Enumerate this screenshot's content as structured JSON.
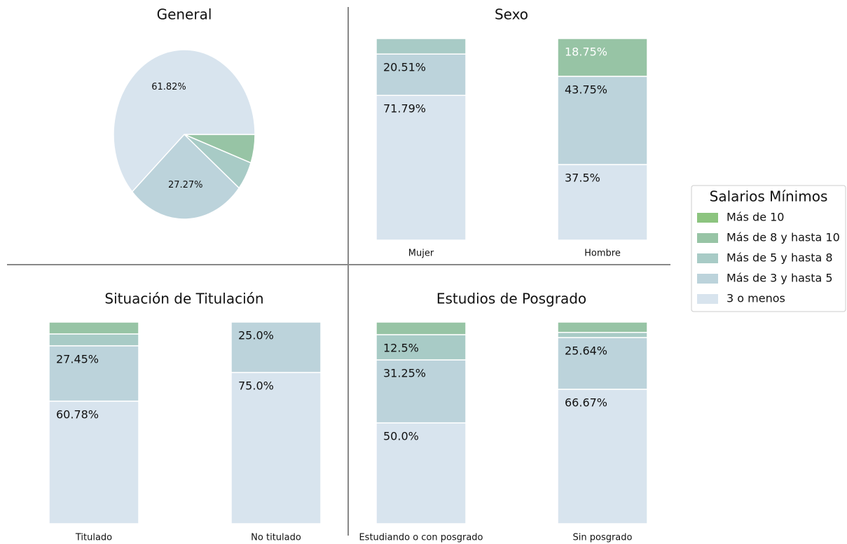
{
  "legend_title": "Salarios Mínimos",
  "chart_data": [
    {
      "type": "pie",
      "title": "General",
      "categories": [
        "Más de 8 y hasta 10",
        "Más de 5 y hasta 8",
        "Más de 3 y hasta 5",
        "3 o menos"
      ],
      "values": [
        5.45,
        5.45,
        27.27,
        61.82
      ],
      "value_labels": [
        null,
        null,
        "27.27%",
        "61.82%"
      ],
      "colors": [
        "#97c4a5",
        "#a8cbc6",
        "#bcd3db",
        "#d8e4ee"
      ]
    },
    {
      "type": "stacked-bar",
      "title": "Sexo",
      "categories": [
        "Mujer",
        "Hombre"
      ],
      "ylim": [
        0,
        100
      ],
      "series": [
        {
          "name": "3 o menos",
          "color": "#d8e4ee",
          "values": [
            71.79,
            37.5
          ],
          "value_labels": [
            "71.79%",
            "37.5%"
          ]
        },
        {
          "name": "Más de 3 y hasta 5",
          "color": "#bcd3db",
          "values": [
            20.51,
            43.75
          ],
          "value_labels": [
            "20.51%",
            "43.75%"
          ]
        },
        {
          "name": "Más de 5 y hasta 8",
          "color": "#a8cbc6",
          "values": [
            7.69,
            0
          ],
          "value_labels": [
            null,
            null
          ]
        },
        {
          "name": "Más de 8 y hasta 10",
          "color": "#97c4a5",
          "values": [
            0,
            18.75
          ],
          "value_labels": [
            null,
            "18.75%"
          ],
          "label_color": "#ffffff"
        },
        {
          "name": "Más de 10",
          "color": "#8cc47f",
          "values": [
            0,
            0
          ],
          "value_labels": [
            null,
            null
          ]
        }
      ]
    },
    {
      "type": "stacked-bar",
      "title": "Situación de Titulación",
      "categories": [
        "Titulado",
        "No titulado"
      ],
      "ylim": [
        0,
        100
      ],
      "series": [
        {
          "name": "3 o menos",
          "color": "#d8e4ee",
          "values": [
            60.78,
            75.0
          ],
          "value_labels": [
            "60.78%",
            "75.0%"
          ]
        },
        {
          "name": "Más de 3 y hasta 5",
          "color": "#bcd3db",
          "values": [
            27.45,
            25.0
          ],
          "value_labels": [
            "27.45%",
            "25.0%"
          ]
        },
        {
          "name": "Más de 5 y hasta 8",
          "color": "#a8cbc6",
          "values": [
            5.88,
            0
          ],
          "value_labels": [
            null,
            null
          ]
        },
        {
          "name": "Más de 8 y hasta 10",
          "color": "#97c4a5",
          "values": [
            5.88,
            0
          ],
          "value_labels": [
            null,
            null
          ]
        },
        {
          "name": "Más de 10",
          "color": "#8cc47f",
          "values": [
            0,
            0
          ],
          "value_labels": [
            null,
            null
          ]
        }
      ]
    },
    {
      "type": "stacked-bar",
      "title": "Estudios de Posgrado",
      "categories": [
        "Estudiando o con posgrado",
        "Sin posgrado"
      ],
      "ylim": [
        0,
        100
      ],
      "series": [
        {
          "name": "3 o menos",
          "color": "#d8e4ee",
          "values": [
            50.0,
            66.67
          ],
          "value_labels": [
            "50.0%",
            "66.67%"
          ]
        },
        {
          "name": "Más de 3 y hasta 5",
          "color": "#bcd3db",
          "values": [
            31.25,
            25.64
          ],
          "value_labels": [
            "31.25%",
            "25.64%"
          ]
        },
        {
          "name": "Más de 5 y hasta 8",
          "color": "#a8cbc6",
          "values": [
            12.5,
            2.56
          ],
          "value_labels": [
            "12.5%",
            null
          ]
        },
        {
          "name": "Más de 8 y hasta 10",
          "color": "#97c4a5",
          "values": [
            6.25,
            5.13
          ],
          "value_labels": [
            null,
            null
          ]
        },
        {
          "name": "Más de 10",
          "color": "#8cc47f",
          "values": [
            0,
            0
          ],
          "value_labels": [
            null,
            null
          ]
        }
      ]
    }
  ]
}
